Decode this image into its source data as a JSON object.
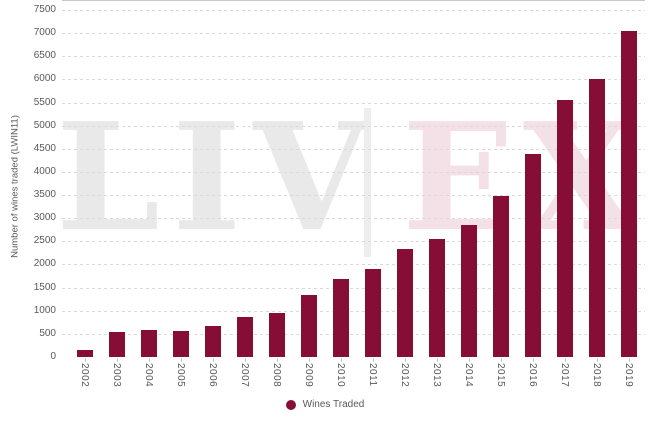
{
  "chart_data": {
    "type": "bar",
    "title": "",
    "categories": [
      "2002",
      "2003",
      "2004",
      "2005",
      "2006",
      "2007",
      "2008",
      "2009",
      "2010",
      "2011",
      "2012",
      "2013",
      "2014",
      "2015",
      "2016",
      "2017",
      "2018",
      "2019"
    ],
    "values": [
      160,
      530,
      580,
      570,
      660,
      870,
      950,
      1340,
      1680,
      1910,
      2340,
      2560,
      2850,
      3490,
      4380,
      5560,
      6000,
      7040
    ],
    "series_name": "Wines Traded",
    "xlabel": "",
    "ylabel": "Number of wines traded (LWIN11)",
    "ylim": [
      0,
      7500
    ],
    "y_ticks": [
      0,
      500,
      1000,
      1500,
      2000,
      2500,
      3000,
      3500,
      4000,
      4500,
      5000,
      5500,
      6000,
      6500,
      7000,
      7500
    ],
    "grid": "horizontal-dashed",
    "legend_position": "bottom-center",
    "bar_color": "#860d36"
  },
  "legend": {
    "label": "Wines Traded",
    "marker": "circle",
    "marker_color": "#860d36"
  },
  "watermark": {
    "left_text": "LIV",
    "right_text": "EX",
    "left_color": "#e9e9e9",
    "right_color": "#f4e1e8",
    "separator_color": "#ededed"
  },
  "colors": {
    "bar": "#860d36",
    "grid": "#d9d9d9",
    "axis_line": "#c8c8c8",
    "tick_text": "#595959",
    "background": "#ffffff"
  }
}
